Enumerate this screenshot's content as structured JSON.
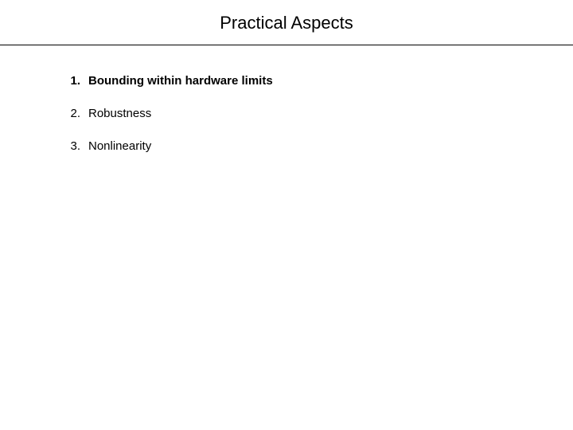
{
  "title": "Practical Aspects",
  "list": {
    "items": [
      {
        "number": "1.",
        "text": "Bounding within hardware limits",
        "bold": true
      },
      {
        "number": "2.",
        "text": "Robustness",
        "bold": false
      },
      {
        "number": "3.",
        "text": "Nonlinearity",
        "bold": false
      }
    ]
  },
  "colors": {
    "background": "#ffffff",
    "text": "#000000",
    "divider": "#000000"
  },
  "typography": {
    "title_fontsize": 22,
    "body_fontsize": 15,
    "font_family": "Arial"
  }
}
